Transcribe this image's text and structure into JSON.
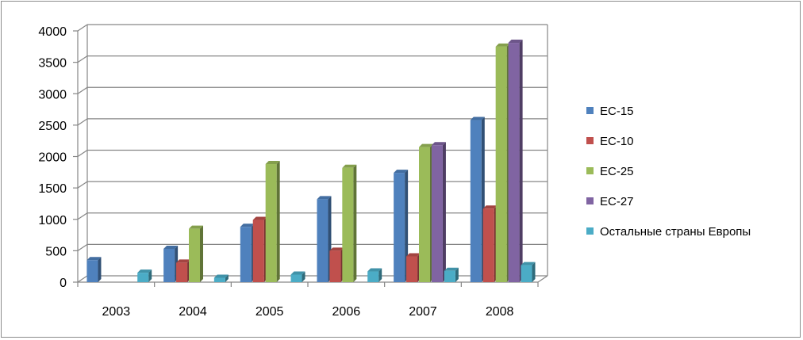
{
  "chart_data": {
    "type": "bar",
    "categories": [
      "2003",
      "2004",
      "2005",
      "2006",
      "2007",
      "2008"
    ],
    "series": [
      {
        "name": "ЕС-15",
        "color": "#4F81BD",
        "values": [
          350,
          530,
          880,
          1320,
          1740,
          2580
        ]
      },
      {
        "name": "ЕС-10",
        "color": "#C0504D",
        "values": [
          null,
          310,
          990,
          500,
          410,
          1170
        ]
      },
      {
        "name": "ЕС-25",
        "color": "#9BBB59",
        "values": [
          null,
          850,
          1880,
          1820,
          2150,
          3750
        ]
      },
      {
        "name": "ЕС-27",
        "color": "#8064A2",
        "values": [
          null,
          null,
          null,
          null,
          2180,
          3810
        ]
      },
      {
        "name": "Остальные страны Европы",
        "color": "#4BACC6",
        "values": [
          150,
          70,
          120,
          170,
          180,
          270
        ]
      }
    ],
    "y_ticks": [
      "0",
      "500",
      "1000",
      "1500",
      "2000",
      "2500",
      "3000",
      "3500",
      "4000"
    ],
    "ylim": [
      0,
      4000
    ],
    "grid": true,
    "legend_position": "right"
  }
}
